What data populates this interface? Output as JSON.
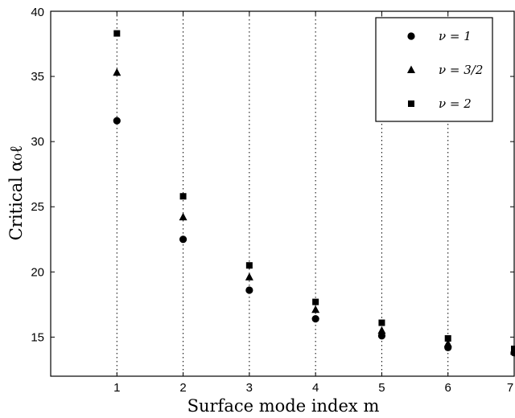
{
  "chart_data": {
    "type": "scatter",
    "xlabel": "Surface mode index m",
    "ylabel": "Critical α₀ℓ",
    "xlim": [
      0,
      7
    ],
    "ylim": [
      12,
      40
    ],
    "x_ticks": [
      "1",
      "2",
      "3",
      "4",
      "5",
      "6",
      "7"
    ],
    "y_ticks": [
      "15",
      "20",
      "25",
      "30",
      "35",
      "40"
    ],
    "x_tick_values": [
      1,
      2,
      3,
      4,
      5,
      6,
      7
    ],
    "y_tick_values": [
      15,
      20,
      25,
      30,
      35,
      40
    ],
    "vertical_grid": "dotted at integer x",
    "legend_placement": "top-right",
    "series": [
      {
        "name": "ν = 1",
        "marker": "circle",
        "x": [
          1,
          2,
          3,
          4,
          5,
          6,
          7
        ],
        "y": [
          31.6,
          22.5,
          18.6,
          16.4,
          15.1,
          14.2,
          13.8
        ]
      },
      {
        "name": "ν = 3/2",
        "marker": "triangle",
        "x": [
          1,
          2,
          3,
          4,
          5,
          6,
          7
        ],
        "y": [
          35.3,
          24.2,
          19.6,
          17.1,
          15.5,
          14.5,
          13.9
        ]
      },
      {
        "name": "ν = 2",
        "marker": "square",
        "x": [
          1,
          2,
          3,
          4,
          5,
          6,
          7
        ],
        "y": [
          38.3,
          25.8,
          20.5,
          17.7,
          16.1,
          14.9,
          14.1
        ]
      }
    ],
    "color": "#000000"
  }
}
